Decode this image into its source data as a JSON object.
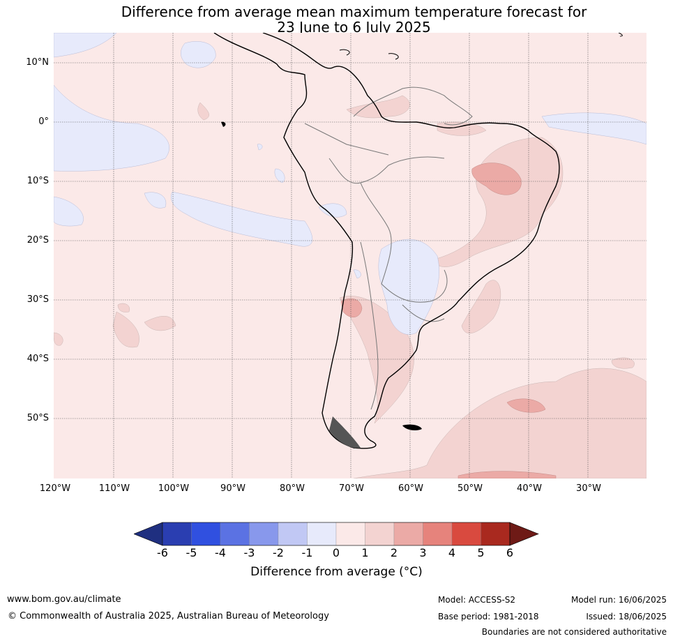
{
  "title": {
    "line1": "Difference from average mean maximum temperature forecast for",
    "line2": "23 June to 6 July 2025"
  },
  "map": {
    "lat_labels": [
      "10°N",
      "0°",
      "10°S",
      "20°S",
      "30°S",
      "40°S",
      "50°S"
    ],
    "lon_labels": [
      "120°W",
      "110°W",
      "100°W",
      "90°W",
      "80°W",
      "70°W",
      "60°W",
      "50°W",
      "40°W",
      "30°W"
    ]
  },
  "colorbar": {
    "ticks": [
      "-6",
      "-5",
      "-4",
      "-3",
      "-2",
      "-1",
      "0",
      "1",
      "2",
      "3",
      "4",
      "5",
      "6"
    ],
    "colors": [
      "#1f2f80",
      "#2a3eb1",
      "#3050e0",
      "#5b72e3",
      "#8898ec",
      "#c1c8f4",
      "#e7eafb",
      "#fbe9e8",
      "#f3d3d1",
      "#ebaaa6",
      "#e6837c",
      "#d94a3f",
      "#a9291f",
      "#6e1a16"
    ],
    "label": "Difference from average (°C)"
  },
  "footer": {
    "url": "www.bom.gov.au/climate",
    "copyright": "© Commonwealth of Australia 2025, Australian Bureau of Meteorology",
    "model": "Model: ACCESS-S2",
    "base_period": "Base period: 1981-2018",
    "model_run": "Model run: 16/06/2025",
    "issued": "Issued: 18/06/2025",
    "disclaimer": "Boundaries are not considered authoritative"
  }
}
